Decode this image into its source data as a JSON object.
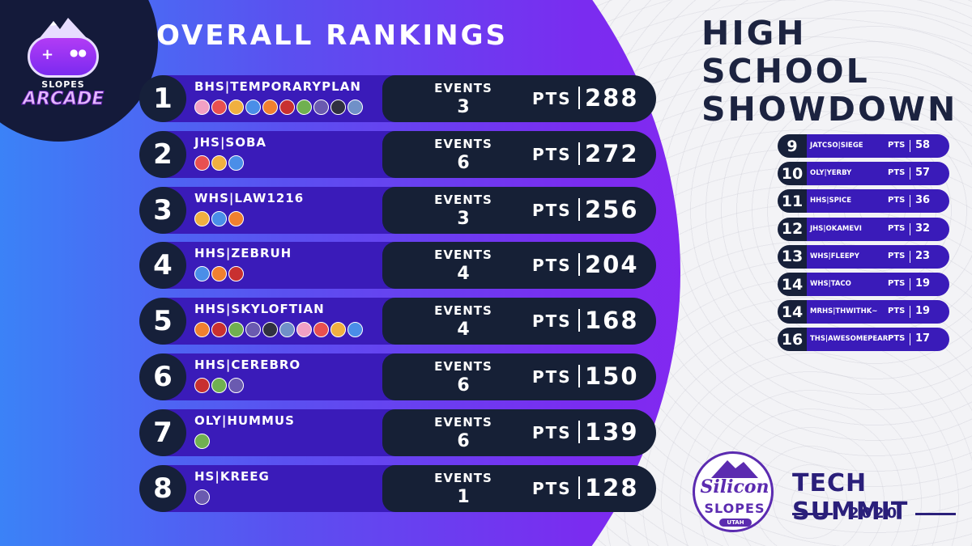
{
  "logo": {
    "line1": "SLOPES",
    "line2": "ARCADE",
    "icon": "gamepad-mountain-icon"
  },
  "title": "OVERALL RANKINGS",
  "event_title": "HIGH SCHOOL SHOWDOWN",
  "labels": {
    "events": "EVENTS",
    "pts": "PTS"
  },
  "top_rankings": [
    {
      "rank": "1",
      "team": "BHS|TEMPORARYPLAN",
      "events": "3",
      "pts": "288",
      "characters": 10
    },
    {
      "rank": "2",
      "team": "JHS|SOBA",
      "events": "6",
      "pts": "272",
      "characters": 3
    },
    {
      "rank": "3",
      "team": "WHS|LAW1216",
      "events": "3",
      "pts": "256",
      "characters": 3
    },
    {
      "rank": "4",
      "team": "HHS|ZEBRUH",
      "events": "4",
      "pts": "204",
      "characters": 3
    },
    {
      "rank": "5",
      "team": "HHS|SKYLOFTIAN",
      "events": "4",
      "pts": "168",
      "characters": 10
    },
    {
      "rank": "6",
      "team": "HHS|CEREBRO",
      "events": "6",
      "pts": "150",
      "characters": 3
    },
    {
      "rank": "7",
      "team": "OLY|HUMMUS",
      "events": "6",
      "pts": "139",
      "characters": 1
    },
    {
      "rank": "8",
      "team": "HS|KREEG",
      "events": "1",
      "pts": "128",
      "characters": 1
    }
  ],
  "other_rankings": [
    {
      "rank": "9",
      "team": "JATCSO|SIEGE",
      "pts": "58"
    },
    {
      "rank": "10",
      "team": "OLY|YERBY",
      "pts": "57"
    },
    {
      "rank": "11",
      "team": "HHS|SPICE",
      "pts": "36"
    },
    {
      "rank": "12",
      "team": "JHS|OKAMEVI",
      "pts": "32"
    },
    {
      "rank": "13",
      "team": "WHS|FLEEPY",
      "pts": "23"
    },
    {
      "rank": "14",
      "team": "WHS|TACO",
      "pts": "19"
    },
    {
      "rank": "14",
      "team": "MRHS|THWITHK~",
      "pts": "19"
    },
    {
      "rank": "16",
      "team": "THS|AWESOMEPEAR",
      "pts": "17"
    }
  ],
  "sponsor": {
    "badge_line1": "Silicon",
    "badge_line2": "SLOPES",
    "badge_line3": "UTAH",
    "summit_title": "TECH SUMMIT",
    "summit_year": "2020"
  },
  "colors": {
    "panel_gradient": [
      "#3b82f7",
      "#7a2cf0",
      "#9b1ef3"
    ],
    "row_bar": "#3a1bb9",
    "stat_box": "#162036",
    "heading_dark": "#1c2340"
  }
}
